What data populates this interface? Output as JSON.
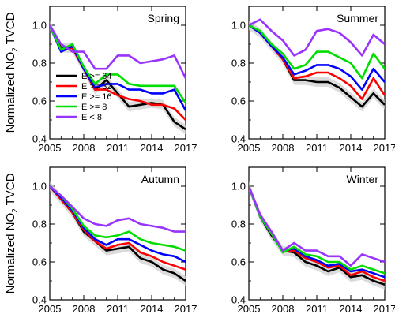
{
  "figure": {
    "ylabel_main": "Normalized NO",
    "ylabel_sub": "2",
    "ylabel_tail": " TVCD"
  },
  "chart_data": [
    {
      "type": "line",
      "title": "Spring",
      "ylabel": "Normalized NO2 TVCD",
      "xlim": [
        2005,
        2017
      ],
      "ylim": [
        0.4,
        1.1
      ],
      "xticks": [
        "2005",
        "2008",
        "2011",
        "2014",
        "2017"
      ],
      "yticks": [
        "0.4",
        "0.6",
        "0.8",
        "1.0"
      ],
      "x": [
        2005,
        2006,
        2007,
        2008,
        2009,
        2010,
        2011,
        2012,
        2013,
        2014,
        2015,
        2016,
        2017
      ],
      "legend": {
        "position": "lower-left"
      },
      "series": [
        {
          "name": "E >= 64",
          "color": "#000000",
          "values": [
            1.0,
            0.88,
            0.88,
            0.77,
            0.66,
            0.71,
            0.64,
            0.57,
            0.58,
            0.59,
            0.58,
            0.49,
            0.45
          ]
        },
        {
          "name": "E >= 32",
          "color": "#ff0000",
          "values": [
            1.0,
            0.87,
            0.88,
            0.77,
            0.66,
            0.66,
            0.63,
            0.61,
            0.6,
            0.58,
            0.58,
            0.56,
            0.5
          ]
        },
        {
          "name": "E >= 16",
          "color": "#0000ff",
          "values": [
            1.0,
            0.86,
            0.89,
            0.77,
            0.67,
            0.69,
            0.69,
            0.66,
            0.66,
            0.64,
            0.64,
            0.66,
            0.55
          ]
        },
        {
          "name": "E >= 8",
          "color": "#00dd00",
          "values": [
            1.0,
            0.87,
            0.9,
            0.78,
            0.69,
            0.74,
            0.74,
            0.69,
            0.68,
            0.68,
            0.68,
            0.68,
            0.59
          ]
        },
        {
          "name": "E < 8",
          "color": "#9933ff",
          "values": [
            1.0,
            0.9,
            0.86,
            0.86,
            0.77,
            0.77,
            0.84,
            0.84,
            0.8,
            0.81,
            0.82,
            0.84,
            0.72
          ]
        }
      ]
    },
    {
      "type": "line",
      "title": "Summer",
      "xlim": [
        2005,
        2017
      ],
      "ylim": [
        0.4,
        1.1
      ],
      "xticks": [
        "2005",
        "2008",
        "2011",
        "2014",
        "2017"
      ],
      "yticks": [
        "0.4",
        "0.6",
        "0.8",
        "1.0"
      ],
      "x": [
        2005,
        2006,
        2007,
        2008,
        2009,
        2010,
        2011,
        2012,
        2013,
        2014,
        2015,
        2016,
        2017
      ],
      "series": [
        {
          "name": "E >= 64",
          "color": "#000000",
          "values": [
            1.0,
            0.96,
            0.89,
            0.82,
            0.71,
            0.71,
            0.7,
            0.7,
            0.67,
            0.62,
            0.57,
            0.64,
            0.58
          ]
        },
        {
          "name": "E >= 32",
          "color": "#ff0000",
          "values": [
            1.0,
            0.96,
            0.89,
            0.82,
            0.72,
            0.73,
            0.75,
            0.75,
            0.72,
            0.68,
            0.61,
            0.72,
            0.63
          ]
        },
        {
          "name": "E >= 16",
          "color": "#0000ff",
          "values": [
            1.0,
            0.96,
            0.89,
            0.83,
            0.74,
            0.76,
            0.79,
            0.79,
            0.77,
            0.73,
            0.66,
            0.77,
            0.7
          ]
        },
        {
          "name": "E >= 8",
          "color": "#00dd00",
          "values": [
            1.0,
            0.97,
            0.9,
            0.85,
            0.77,
            0.79,
            0.86,
            0.86,
            0.83,
            0.8,
            0.72,
            0.85,
            0.77
          ]
        },
        {
          "name": "E < 8",
          "color": "#9933ff",
          "values": [
            1.0,
            1.03,
            0.97,
            0.92,
            0.84,
            0.87,
            0.97,
            0.98,
            0.96,
            0.91,
            0.84,
            0.95,
            0.9
          ]
        }
      ]
    },
    {
      "type": "line",
      "title": "Autumn",
      "ylabel": "Normalized NO2 TVCD",
      "xlim": [
        2005,
        2017
      ],
      "ylim": [
        0.4,
        1.1
      ],
      "xticks": [
        "2005",
        "2008",
        "2011",
        "2014",
        "2017"
      ],
      "yticks": [
        "0.4",
        "0.6",
        "0.8",
        "1.0"
      ],
      "x": [
        2005,
        2006,
        2007,
        2008,
        2009,
        2010,
        2011,
        2012,
        2013,
        2014,
        2015,
        2016,
        2017
      ],
      "series": [
        {
          "name": "E >= 64",
          "color": "#000000",
          "values": [
            1.0,
            0.93,
            0.86,
            0.76,
            0.71,
            0.66,
            0.67,
            0.68,
            0.62,
            0.6,
            0.56,
            0.54,
            0.5
          ]
        },
        {
          "name": "E >= 32",
          "color": "#ff0000",
          "values": [
            1.0,
            0.93,
            0.86,
            0.77,
            0.71,
            0.67,
            0.69,
            0.7,
            0.65,
            0.63,
            0.6,
            0.58,
            0.56
          ]
        },
        {
          "name": "E >= 16",
          "color": "#0000ff",
          "values": [
            1.0,
            0.94,
            0.87,
            0.78,
            0.72,
            0.69,
            0.72,
            0.72,
            0.69,
            0.66,
            0.64,
            0.63,
            0.6
          ]
        },
        {
          "name": "E >= 8",
          "color": "#00dd00",
          "values": [
            1.0,
            0.95,
            0.88,
            0.79,
            0.74,
            0.73,
            0.74,
            0.76,
            0.72,
            0.7,
            0.69,
            0.68,
            0.66
          ]
        },
        {
          "name": "E < 8",
          "color": "#9933ff",
          "values": [
            1.0,
            0.95,
            0.89,
            0.83,
            0.8,
            0.79,
            0.82,
            0.83,
            0.8,
            0.79,
            0.78,
            0.76,
            0.76
          ]
        }
      ]
    },
    {
      "type": "line",
      "title": "Winter",
      "xlim": [
        2005,
        2017
      ],
      "ylim": [
        0.4,
        1.1
      ],
      "xticks": [
        "2005",
        "2008",
        "2011",
        "2014",
        "2017"
      ],
      "yticks": [
        "0.4",
        "0.6",
        "0.8",
        "1.0"
      ],
      "x": [
        2005,
        2006,
        2007,
        2008,
        2009,
        2010,
        2011,
        2012,
        2013,
        2014,
        2015,
        2016,
        2017
      ],
      "series": [
        {
          "name": "E >= 64",
          "color": "#000000",
          "values": [
            1.0,
            0.84,
            0.74,
            0.66,
            0.65,
            0.6,
            0.58,
            0.55,
            0.57,
            0.52,
            0.53,
            0.5,
            0.48
          ]
        },
        {
          "name": "E >= 32",
          "color": "#ff0000",
          "values": [
            1.0,
            0.84,
            0.75,
            0.66,
            0.66,
            0.62,
            0.6,
            0.57,
            0.58,
            0.53,
            0.55,
            0.52,
            0.5
          ]
        },
        {
          "name": "E >= 16",
          "color": "#0000ff",
          "values": [
            1.0,
            0.84,
            0.75,
            0.66,
            0.67,
            0.63,
            0.61,
            0.58,
            0.59,
            0.55,
            0.56,
            0.54,
            0.52
          ]
        },
        {
          "name": "E >= 8",
          "color": "#00dd00",
          "values": [
            1.0,
            0.84,
            0.75,
            0.65,
            0.68,
            0.64,
            0.63,
            0.6,
            0.6,
            0.56,
            0.58,
            0.56,
            0.54
          ]
        },
        {
          "name": "E < 8",
          "color": "#9933ff",
          "values": [
            1.0,
            0.85,
            0.76,
            0.66,
            0.7,
            0.66,
            0.66,
            0.63,
            0.63,
            0.58,
            0.64,
            0.62,
            0.6
          ]
        }
      ]
    }
  ]
}
